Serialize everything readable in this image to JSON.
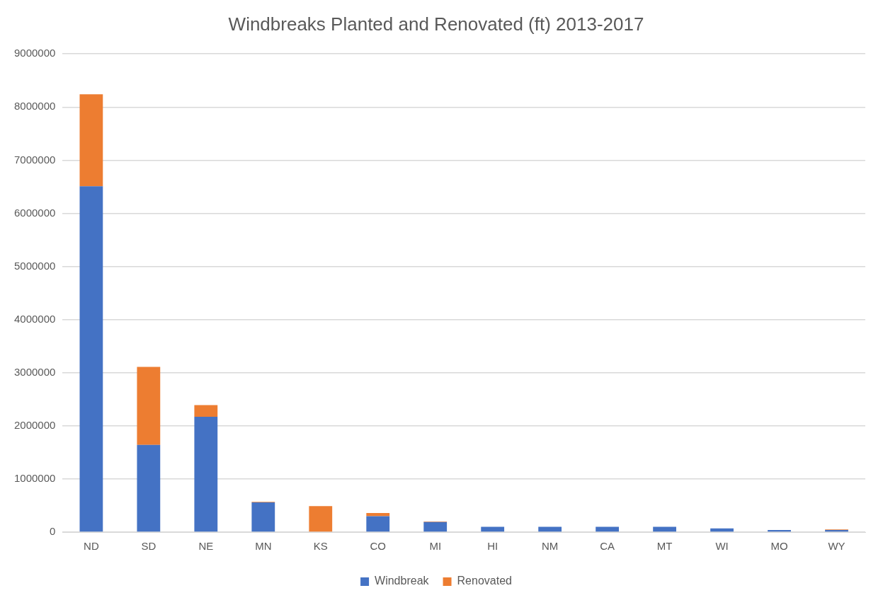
{
  "chart_data": {
    "type": "bar",
    "title": "Windbreaks Planted and Renovated (ft) 2013-2017",
    "stacked": true,
    "categories": [
      "ND",
      "SD",
      "NE",
      "MN",
      "KS",
      "CO",
      "MI",
      "HI",
      "NM",
      "CA",
      "MT",
      "WI",
      "MO",
      "WY"
    ],
    "series": [
      {
        "name": "Windbreak",
        "color": "#4472c4",
        "values": [
          6510000,
          1640000,
          2170000,
          560000,
          10000,
          300000,
          190000,
          100000,
          100000,
          100000,
          100000,
          70000,
          40000,
          40000
        ]
      },
      {
        "name": "Renovated",
        "color": "#ed7d31",
        "values": [
          1730000,
          1470000,
          220000,
          10000,
          480000,
          60000,
          10000,
          null,
          null,
          null,
          null,
          0,
          0,
          10000
        ]
      }
    ],
    "ylim": [
      0,
      9000000
    ],
    "yticks": [
      0,
      1000000,
      2000000,
      3000000,
      4000000,
      5000000,
      6000000,
      7000000,
      8000000,
      9000000
    ],
    "grid": "y",
    "legend": "bottom"
  }
}
